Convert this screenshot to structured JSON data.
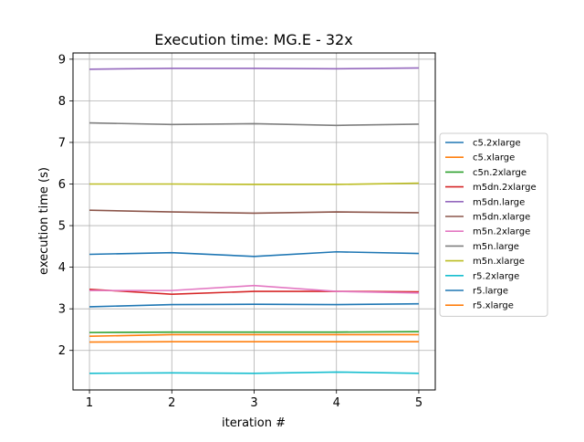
{
  "chart_data": {
    "type": "line",
    "title": "Execution time: MG.E - 32x",
    "xlabel": "iteration #",
    "ylabel": "execution time (s)",
    "x": [
      1,
      2,
      3,
      4,
      5
    ],
    "xlim": [
      0.8,
      5.2
    ],
    "ylim": [
      1.05,
      9.15
    ],
    "xticks": [
      1,
      2,
      3,
      4,
      5
    ],
    "yticks": [
      2,
      3,
      4,
      5,
      6,
      7,
      8,
      9
    ],
    "grid": true,
    "legend_position": "outside-right",
    "series": [
      {
        "name": "c5.2xlarge",
        "color": "#1f77b4",
        "values": [
          4.31,
          4.35,
          4.26,
          4.37,
          4.33
        ]
      },
      {
        "name": "c5.xlarge",
        "color": "#ff7f0e",
        "values": [
          2.34,
          2.38,
          2.38,
          2.38,
          2.38
        ]
      },
      {
        "name": "c5n.2xlarge",
        "color": "#2ca02c",
        "values": [
          2.43,
          2.44,
          2.44,
          2.44,
          2.45
        ]
      },
      {
        "name": "m5dn.2xlarge",
        "color": "#d62728",
        "values": [
          3.47,
          3.35,
          3.42,
          3.42,
          3.41
        ]
      },
      {
        "name": "m5dn.large",
        "color": "#9467bd",
        "values": [
          8.76,
          8.78,
          8.78,
          8.77,
          8.79
        ]
      },
      {
        "name": "m5dn.xlarge",
        "color": "#8c564b",
        "values": [
          5.37,
          5.33,
          5.3,
          5.33,
          5.31
        ]
      },
      {
        "name": "m5n.2xlarge",
        "color": "#e377c2",
        "values": [
          3.44,
          3.44,
          3.56,
          3.42,
          3.38
        ]
      },
      {
        "name": "m5n.large",
        "color": "#7f7f7f",
        "values": [
          7.47,
          7.43,
          7.45,
          7.41,
          7.44
        ]
      },
      {
        "name": "m5n.xlarge",
        "color": "#bcbd22",
        "values": [
          6.0,
          6.0,
          5.99,
          5.99,
          6.02
        ]
      },
      {
        "name": "r5.2xlarge",
        "color": "#17becf",
        "values": [
          1.45,
          1.46,
          1.45,
          1.48,
          1.45
        ]
      },
      {
        "name": "r5.large",
        "color": "#1f77b4",
        "values": [
          3.05,
          3.1,
          3.11,
          3.1,
          3.12
        ]
      },
      {
        "name": "r5.xlarge",
        "color": "#ff7f0e",
        "values": [
          2.2,
          2.21,
          2.21,
          2.21,
          2.21
        ]
      }
    ]
  }
}
